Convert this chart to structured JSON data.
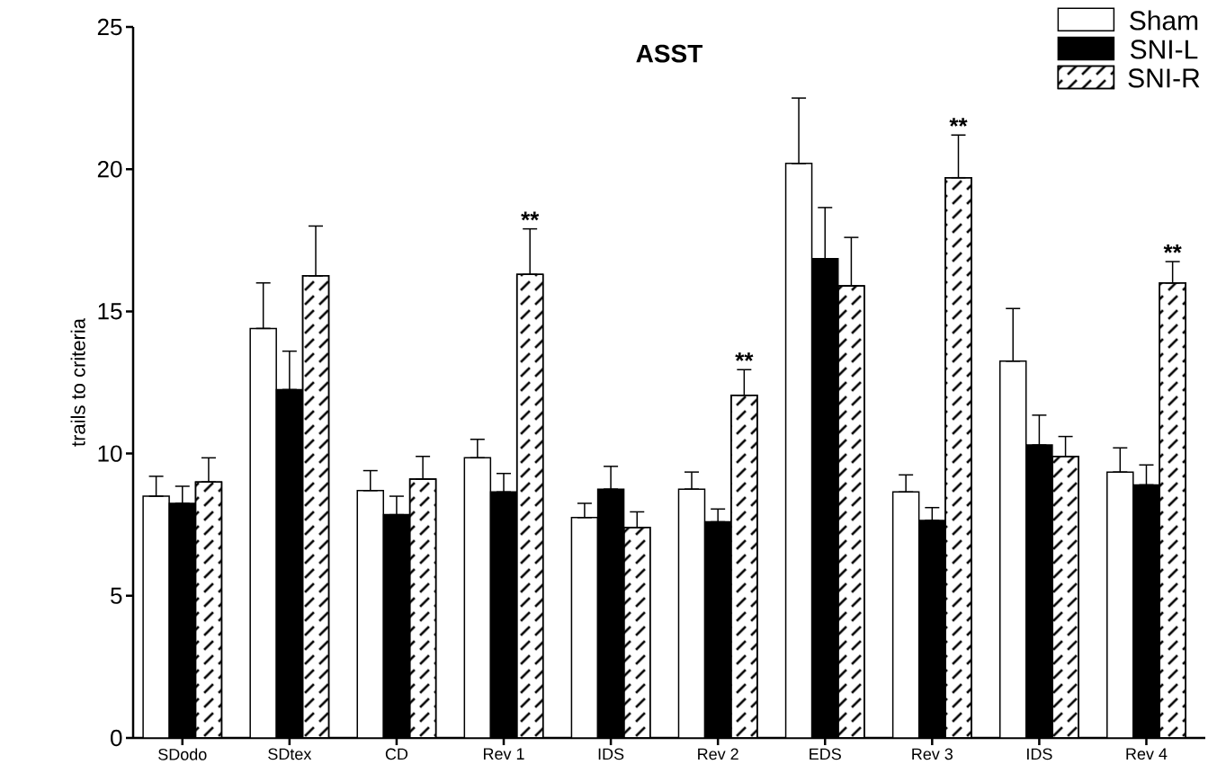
{
  "chart_data": {
    "type": "bar",
    "title": "ASST",
    "ylabel": "trails to criteria",
    "categories": [
      "SDodo",
      "SDtex",
      "CD",
      "Rev 1",
      "IDS",
      "Rev 2",
      "EDS",
      "Rev 3",
      "IDS",
      "Rev 4"
    ],
    "series": [
      {
        "name": "Sham",
        "color": "#ffffff",
        "values": [
          8.5,
          14.4,
          8.7,
          9.85,
          7.75,
          8.75,
          20.2,
          8.65,
          13.25,
          9.35
        ],
        "errors": [
          [
            8.5,
            9.2
          ],
          [
            14.4,
            16.0
          ],
          [
            8.7,
            9.4
          ],
          [
            9.85,
            10.5
          ],
          [
            7.75,
            8.25
          ],
          [
            8.75,
            9.35
          ],
          [
            20.2,
            22.5
          ],
          [
            8.65,
            9.25
          ],
          [
            13.25,
            15.1
          ],
          [
            9.35,
            10.2
          ]
        ]
      },
      {
        "name": "SNI-L",
        "color": "#000000",
        "values": [
          8.25,
          12.25,
          7.85,
          8.65,
          8.75,
          7.6,
          16.85,
          7.65,
          10.3,
          8.9
        ],
        "errors": [
          [
            8.25,
            8.85
          ],
          [
            12.25,
            13.6
          ],
          [
            7.85,
            8.5
          ],
          [
            8.65,
            9.3
          ],
          [
            8.75,
            9.55
          ],
          [
            7.6,
            8.05
          ],
          [
            16.85,
            18.65
          ],
          [
            7.65,
            8.1
          ],
          [
            10.3,
            11.35
          ],
          [
            8.9,
            9.6
          ]
        ]
      },
      {
        "name": "SNI-R",
        "color": "#ffffff",
        "values": [
          9.0,
          16.25,
          9.1,
          16.3,
          7.4,
          12.05,
          15.9,
          19.7,
          9.9,
          16.0
        ],
        "errors": [
          [
            9.0,
            9.85
          ],
          [
            16.25,
            18.0
          ],
          [
            9.1,
            9.9
          ],
          [
            16.3,
            17.9
          ],
          [
            7.4,
            7.95
          ],
          [
            12.05,
            12.95
          ],
          [
            15.9,
            17.6
          ],
          [
            19.7,
            21.2
          ],
          [
            9.9,
            10.6
          ],
          [
            16.0,
            16.75
          ]
        ],
        "value_labels": [
          null,
          null,
          null,
          "**",
          null,
          "**",
          null,
          "**",
          null,
          "**"
        ]
      }
    ],
    "ylim": [
      0,
      25
    ],
    "yticks": [
      0,
      5,
      10,
      15,
      20,
      25
    ],
    "grid": false,
    "legend": "top right"
  }
}
